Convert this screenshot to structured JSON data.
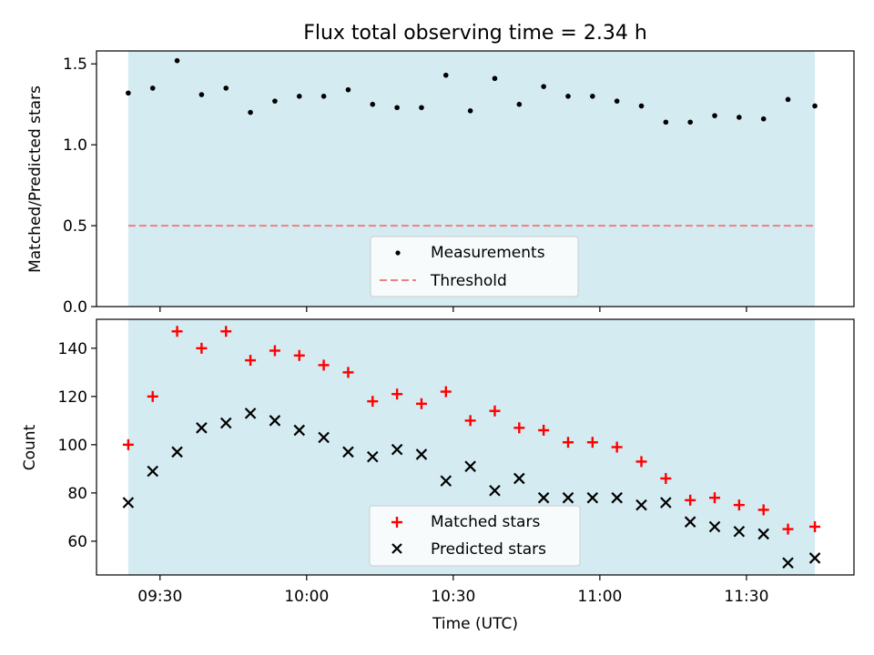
{
  "chart_data": [
    {
      "type": "scatter",
      "title": "Flux total observing time = 2.34 h",
      "xlabel": "",
      "ylabel": "Matched/Predicted stars",
      "ylim": [
        0.0,
        1.58
      ],
      "yticks": [
        0.0,
        0.5,
        1.0,
        1.5
      ],
      "ytick_labels": [
        "0.0",
        "0.5",
        "1.0",
        "1.5"
      ],
      "xticks_minutes": [
        0,
        30,
        60,
        90,
        120
      ],
      "xtick_labels": [
        "",
        "",
        "",
        "",
        ""
      ],
      "xlim_minutes": [
        -13,
        142
      ],
      "observing_span_minutes": [
        -6.5,
        134
      ],
      "observing_span_color": "#d4ebf1",
      "x_minutes": [
        -6.5,
        -1.5,
        3.5,
        8.5,
        13.5,
        18.5,
        23.5,
        28.5,
        33.5,
        38.5,
        43.5,
        48.5,
        53.5,
        58.5,
        63.5,
        68.5,
        73.5,
        78.5,
        83.5,
        88.5,
        93.5,
        98.5,
        103.5,
        108.5,
        113.5,
        118.5,
        123.5,
        128.5,
        134
      ],
      "series": [
        {
          "name": "Measurements",
          "marker": "dot",
          "color": "#000000",
          "values": [
            1.32,
            1.35,
            1.52,
            1.31,
            1.35,
            1.2,
            1.27,
            1.3,
            1.3,
            1.34,
            1.25,
            1.23,
            1.23,
            1.43,
            1.21,
            1.41,
            1.25,
            1.36,
            1.3,
            1.3,
            1.27,
            1.24,
            1.14,
            1.14,
            1.18,
            1.17,
            1.16,
            1.28,
            1.24
          ]
        }
      ],
      "threshold": {
        "name": "Threshold",
        "value": 0.5,
        "color": "#f08080"
      },
      "legend": {
        "position": "lower-center",
        "entries": [
          "Measurements",
          "Threshold"
        ]
      }
    },
    {
      "type": "scatter",
      "title": "",
      "xlabel": "Time (UTC)",
      "ylabel": "Count",
      "ylim": [
        46,
        152
      ],
      "yticks": [
        60,
        80,
        100,
        120,
        140
      ],
      "ytick_labels": [
        "60",
        "80",
        "100",
        "120",
        "140"
      ],
      "xticks_minutes": [
        0,
        30,
        60,
        90,
        120
      ],
      "xtick_labels": [
        "09:30",
        "10:00",
        "10:30",
        "11:00",
        "11:30"
      ],
      "xlim_minutes": [
        -13,
        142
      ],
      "observing_span_minutes": [
        -6.5,
        134
      ],
      "observing_span_color": "#d4ebf1",
      "x_minutes": [
        -6.5,
        -1.5,
        3.5,
        8.5,
        13.5,
        18.5,
        23.5,
        28.5,
        33.5,
        38.5,
        43.5,
        48.5,
        53.5,
        58.5,
        63.5,
        68.5,
        73.5,
        78.5,
        83.5,
        88.5,
        93.5,
        98.5,
        103.5,
        108.5,
        113.5,
        118.5,
        123.5,
        128.5,
        134
      ],
      "series": [
        {
          "name": "Matched stars",
          "marker": "plus",
          "color": "#ff0000",
          "values": [
            100,
            120,
            147,
            140,
            147,
            135,
            139,
            137,
            133,
            130,
            118,
            121,
            117,
            122,
            110,
            114,
            107,
            106,
            101,
            101,
            99,
            93,
            86,
            77,
            78,
            75,
            73,
            65,
            66
          ]
        },
        {
          "name": "Predicted stars",
          "marker": "x",
          "color": "#000000",
          "values": [
            76,
            89,
            97,
            107,
            109,
            113,
            110,
            106,
            103,
            97,
            95,
            98,
            96,
            85,
            91,
            81,
            86,
            78,
            78,
            78,
            78,
            75,
            76,
            68,
            66,
            64,
            63,
            51,
            53
          ]
        }
      ],
      "legend": {
        "position": "lower-center",
        "entries": [
          "Matched stars",
          "Predicted stars"
        ]
      }
    }
  ]
}
